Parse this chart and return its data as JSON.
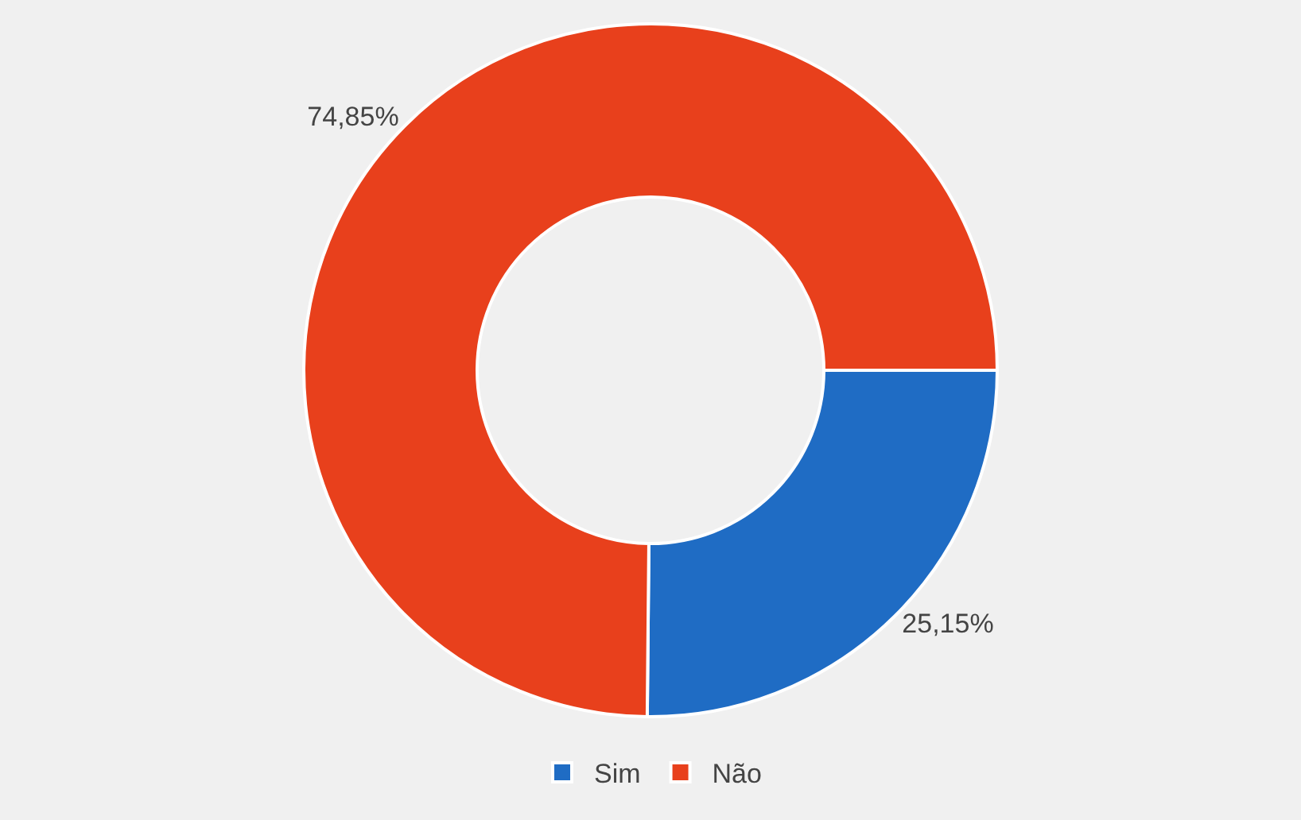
{
  "chart_data": {
    "type": "donut",
    "categories": [
      "Sim",
      "Não"
    ],
    "values": [
      25.15,
      74.85
    ],
    "value_labels": [
      "25,15%",
      "74,85%"
    ],
    "colors": [
      "#1f6cc4",
      "#e8401c"
    ],
    "legend": "bottom"
  }
}
